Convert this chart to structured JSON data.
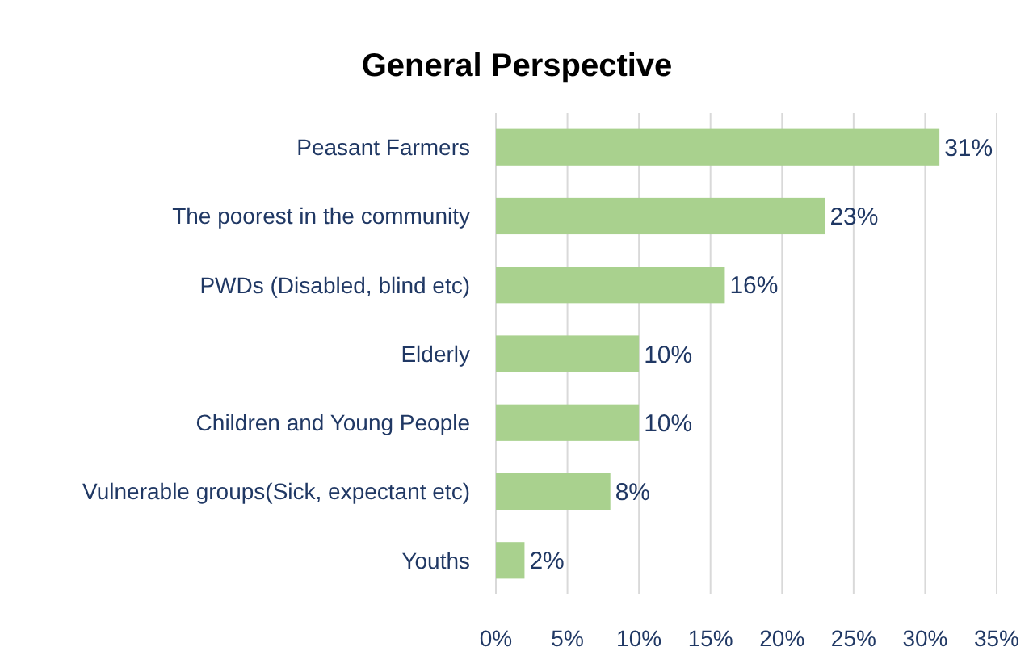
{
  "chart_data": {
    "type": "bar",
    "orientation": "horizontal",
    "title": "General Perspective",
    "categories": [
      "Peasant Farmers",
      "The poorest in the community",
      "PWDs (Disabled, blind etc)",
      "Elderly",
      "Children and Young People",
      "Vulnerable groups(Sick, expectant etc)",
      "Youths"
    ],
    "values": [
      31,
      23,
      16,
      10,
      10,
      8,
      2
    ],
    "color": "#a9d18e",
    "value_labels": [
      "31%",
      "23%",
      "16%",
      "10%",
      "10%",
      "8%",
      "2%"
    ],
    "xlim": [
      0,
      35
    ],
    "xticks": [
      {
        "value": 0,
        "label": "0%"
      },
      {
        "value": 5,
        "label": "5%"
      },
      {
        "value": 10,
        "label": "10%"
      },
      {
        "value": 15,
        "label": "15%"
      },
      {
        "value": 20,
        "label": "20%"
      },
      {
        "value": 25,
        "label": "25%"
      },
      {
        "value": 30,
        "label": "30%"
      },
      {
        "value": 35,
        "label": "35%"
      }
    ],
    "grid": "x"
  }
}
